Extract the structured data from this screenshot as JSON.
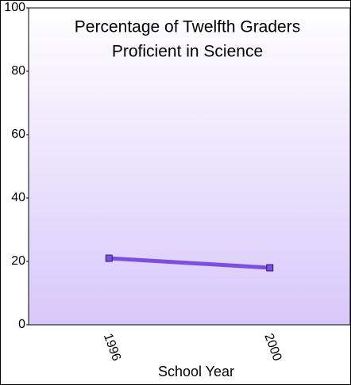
{
  "chart_data": {
    "type": "line",
    "title": "Percentage of Twelfth Graders",
    "subtitle": "Proficient in Science",
    "x_label": "School Year",
    "categories": [
      "1996",
      "2000"
    ],
    "series": [
      {
        "name": "Proficient in Science",
        "color": "#7a4fe6",
        "values": [
          21,
          18
        ]
      }
    ],
    "ylim": [
      0,
      100
    ],
    "yticks": [
      0,
      20,
      40,
      60,
      80,
      100
    ],
    "grid": false
  }
}
